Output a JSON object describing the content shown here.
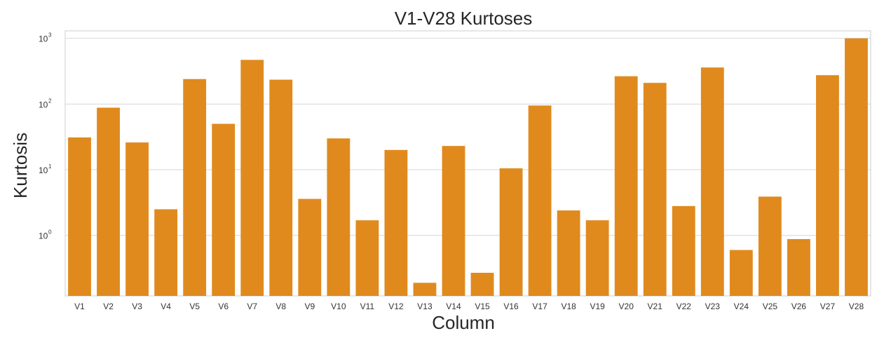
{
  "chart_data": {
    "type": "bar",
    "title": "V1-V28 Kurtoses",
    "xlabel": "Column",
    "ylabel": "Kurtosis",
    "yscale": "log",
    "ylim": [
      0.12,
      1300
    ],
    "ytick_base": "10",
    "yticks": [
      {
        "value": 1,
        "exp": "0"
      },
      {
        "value": 10,
        "exp": "1"
      },
      {
        "value": 100,
        "exp": "2"
      },
      {
        "value": 1000,
        "exp": "3"
      }
    ],
    "grid": true,
    "bar_color": "#e08a1e",
    "categories": [
      "V1",
      "V2",
      "V3",
      "V4",
      "V5",
      "V6",
      "V7",
      "V8",
      "V9",
      "V10",
      "V11",
      "V12",
      "V13",
      "V14",
      "V15",
      "V16",
      "V17",
      "V18",
      "V19",
      "V20",
      "V21",
      "V22",
      "V23",
      "V24",
      "V25",
      "V26",
      "V27",
      "V28"
    ],
    "values": [
      31,
      88,
      26,
      2.5,
      240,
      50,
      470,
      235,
      3.6,
      30,
      1.7,
      20,
      0.19,
      23,
      0.27,
      10.5,
      95,
      2.4,
      1.7,
      265,
      210,
      2.8,
      360,
      0.6,
      3.9,
      0.88,
      275,
      1000
    ]
  }
}
